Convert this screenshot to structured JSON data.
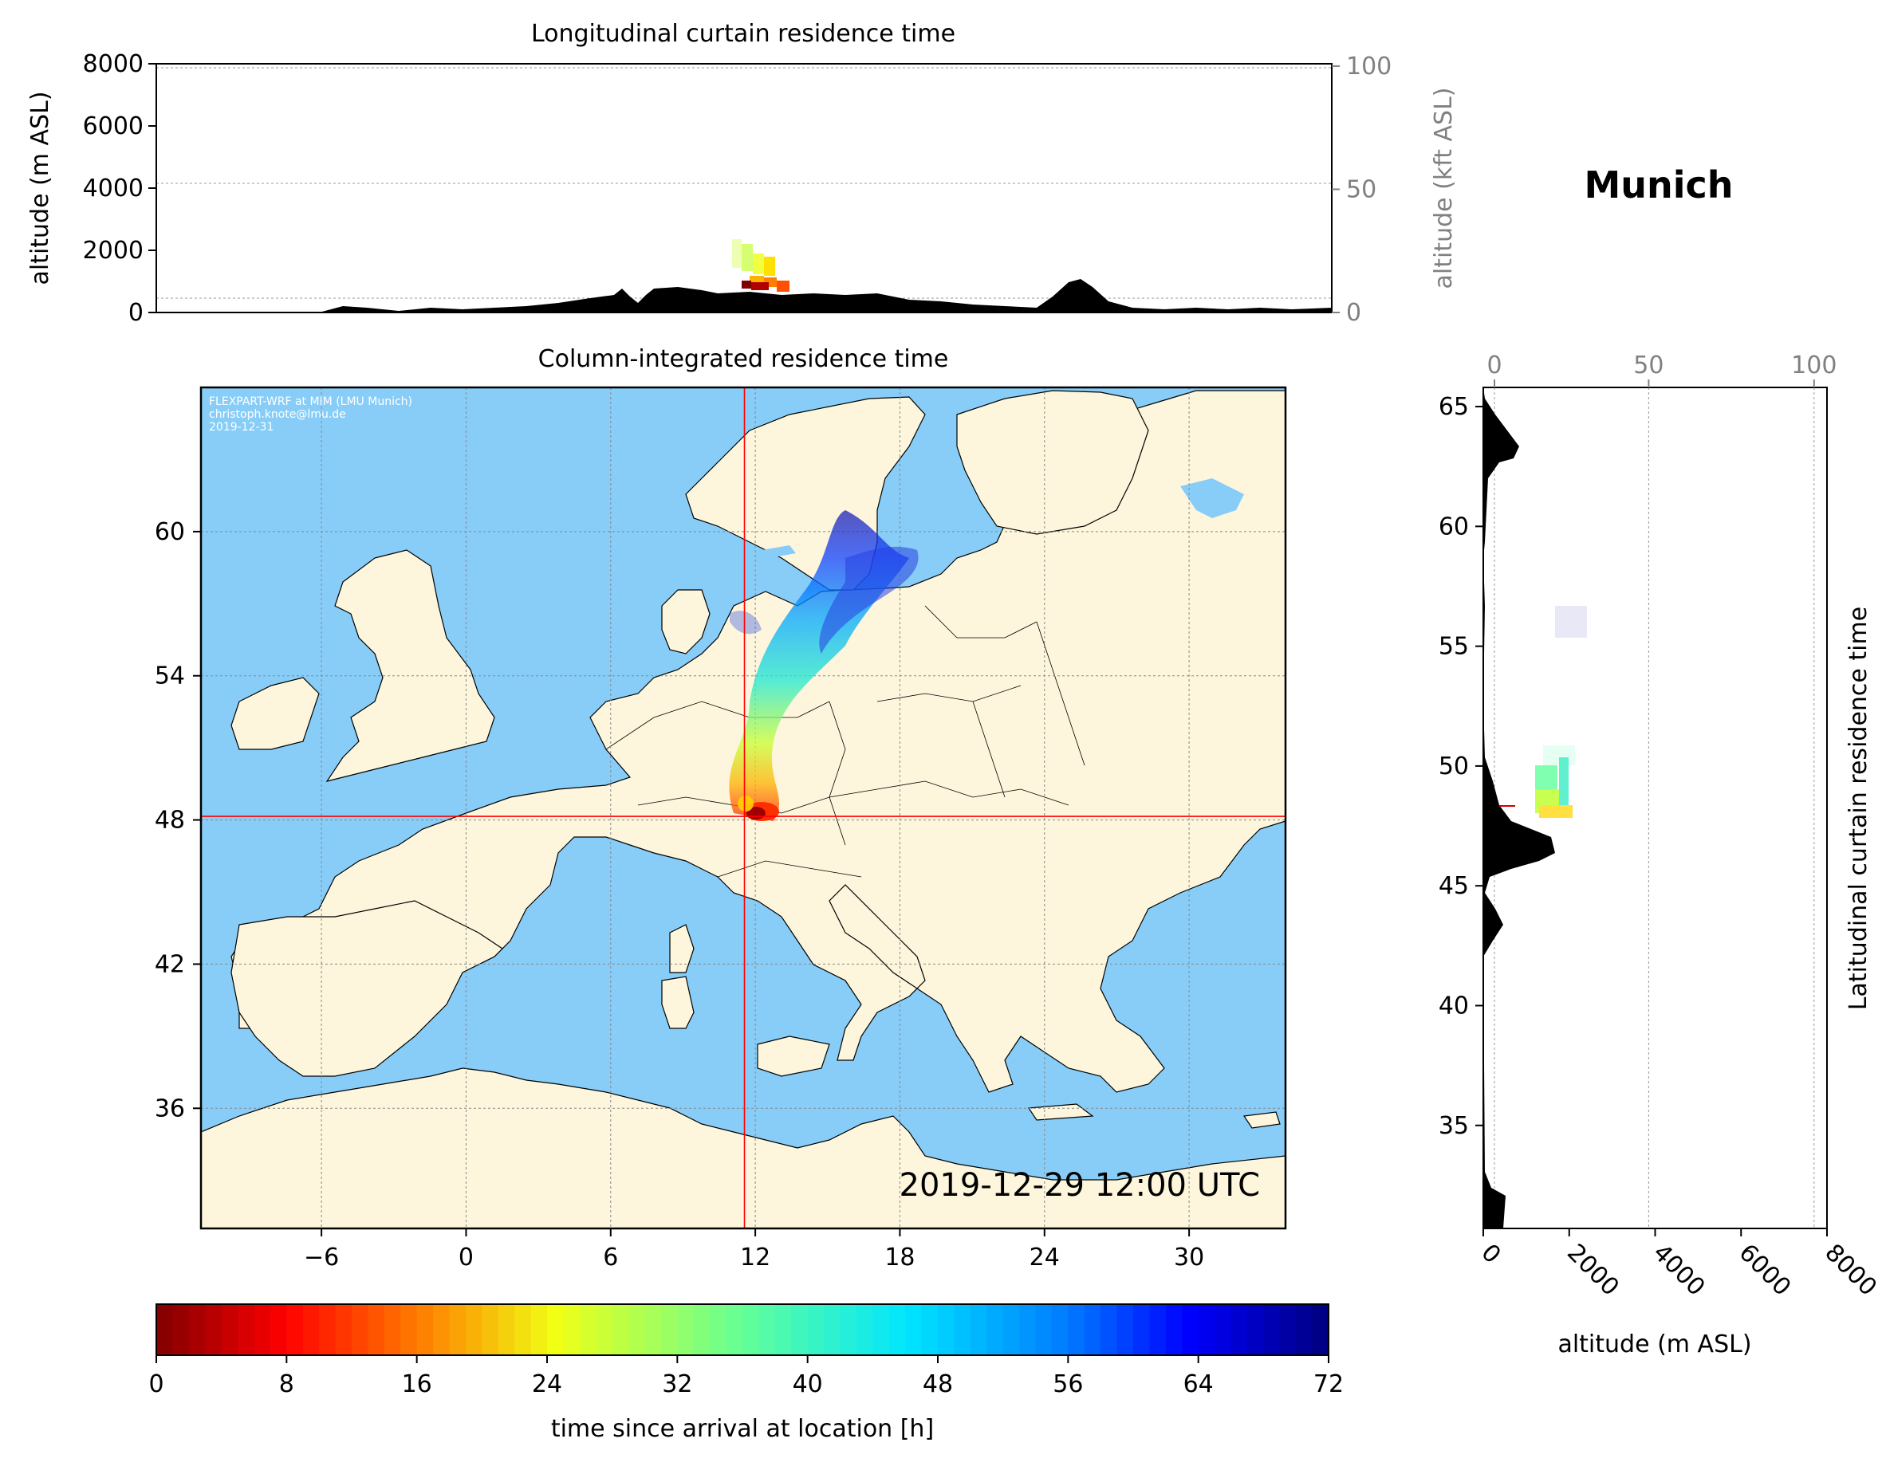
{
  "location_title": "Munich",
  "timestamp": "2019-12-29 12:00 UTC",
  "credit_lines": [
    "FLEXPART-WRF at MIM (LMU Munich)",
    "christoph.knote@lmu.de",
    "2019-12-31"
  ],
  "colors": {
    "ocean": "#87cdf8",
    "land": "#fdf6dc",
    "terrain": "#000000",
    "marker": "#ff0000",
    "secondary_axis": "#808080"
  },
  "top_panel": {
    "title": "Longitudinal curtain residence time",
    "ylabel": "altitude (m ASL)",
    "yticks": [
      "0",
      "2000",
      "4000",
      "6000",
      "8000"
    ],
    "ylabel_right": "altitude (kft ASL)",
    "yticks_right": [
      "0",
      "50",
      "100"
    ],
    "ylim": [
      0,
      8000
    ]
  },
  "map_panel": {
    "title": "Column-integrated residence time",
    "xticks": [
      "−6",
      "0",
      "6",
      "12",
      "18",
      "24",
      "30"
    ],
    "yticks": [
      "36",
      "42",
      "48",
      "54",
      "60"
    ],
    "lon_range": [
      -11,
      34
    ],
    "lat_range": [
      31,
      66
    ],
    "marker": {
      "lon": 11.55,
      "lat": 48.15
    }
  },
  "side_panel": {
    "ylabel": "Latitudinal curtain residence time",
    "xlabel": "altitude (m ASL)",
    "xticks": [
      "0",
      "2000",
      "4000",
      "6000",
      "8000"
    ],
    "xticks_top": [
      "0",
      "50",
      "100"
    ],
    "yticks": [
      "35",
      "40",
      "45",
      "50",
      "55",
      "60",
      "65"
    ],
    "xlim": [
      0,
      8000
    ]
  },
  "colorbar": {
    "label": "time since arrival at location [h]",
    "ticks": [
      "0",
      "8",
      "16",
      "24",
      "32",
      "40",
      "48",
      "56",
      "64",
      "72"
    ],
    "range": [
      0,
      72
    ],
    "colormap": "jet reversed"
  }
}
